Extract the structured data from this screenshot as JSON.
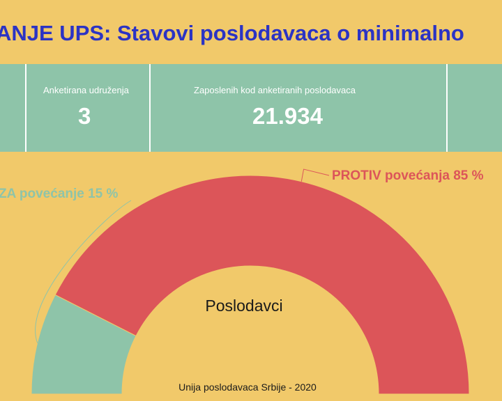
{
  "title": "ANJE UPS: Stavovi poslodavaca o minimalno",
  "stats": [
    {
      "label": "Anketirana udruženja",
      "value": "3"
    },
    {
      "label": "Zaposlenih kod anketiranih poslodavaca",
      "value": "21.934"
    }
  ],
  "colors": {
    "background": "#f1c96a",
    "title": "#2b33c4",
    "stats_band": "#8ec4a9",
    "za": "#8ec4a9",
    "protiv": "#dc5559"
  },
  "chart_data": {
    "type": "pie",
    "variant": "semicircle-donut",
    "center_label": "Poslodavci",
    "slices": [
      {
        "label": "ZA povećanje 15 %",
        "value": 15,
        "color": "#8ec4a9"
      },
      {
        "label": "PROTIV povećanja 85 %",
        "value": 85,
        "color": "#dc5559"
      }
    ]
  },
  "source": "Unija poslodavaca Srbije - 2020"
}
